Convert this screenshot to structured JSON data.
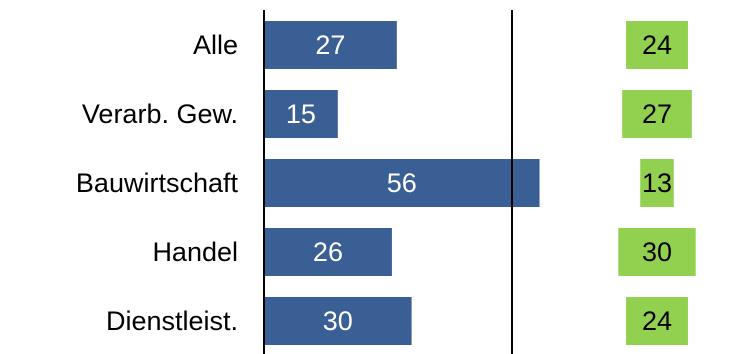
{
  "chart_data": {
    "type": "bar",
    "orientation": "horizontal",
    "categories": [
      "Alle",
      "Verarb. Gew.",
      "Bauwirtschaft",
      "Handel",
      "Dienstleist."
    ],
    "series": [
      {
        "values": [
          27,
          15,
          56,
          26,
          30
        ],
        "color": "#3A5F95",
        "label_color": "#ffffff"
      },
      {
        "values": [
          24,
          27,
          13,
          30,
          24
        ],
        "color": "#92D050",
        "label_color": "#000000"
      }
    ],
    "title": "",
    "xlabel": "",
    "ylabel": "",
    "grid": false,
    "legend": "none"
  }
}
